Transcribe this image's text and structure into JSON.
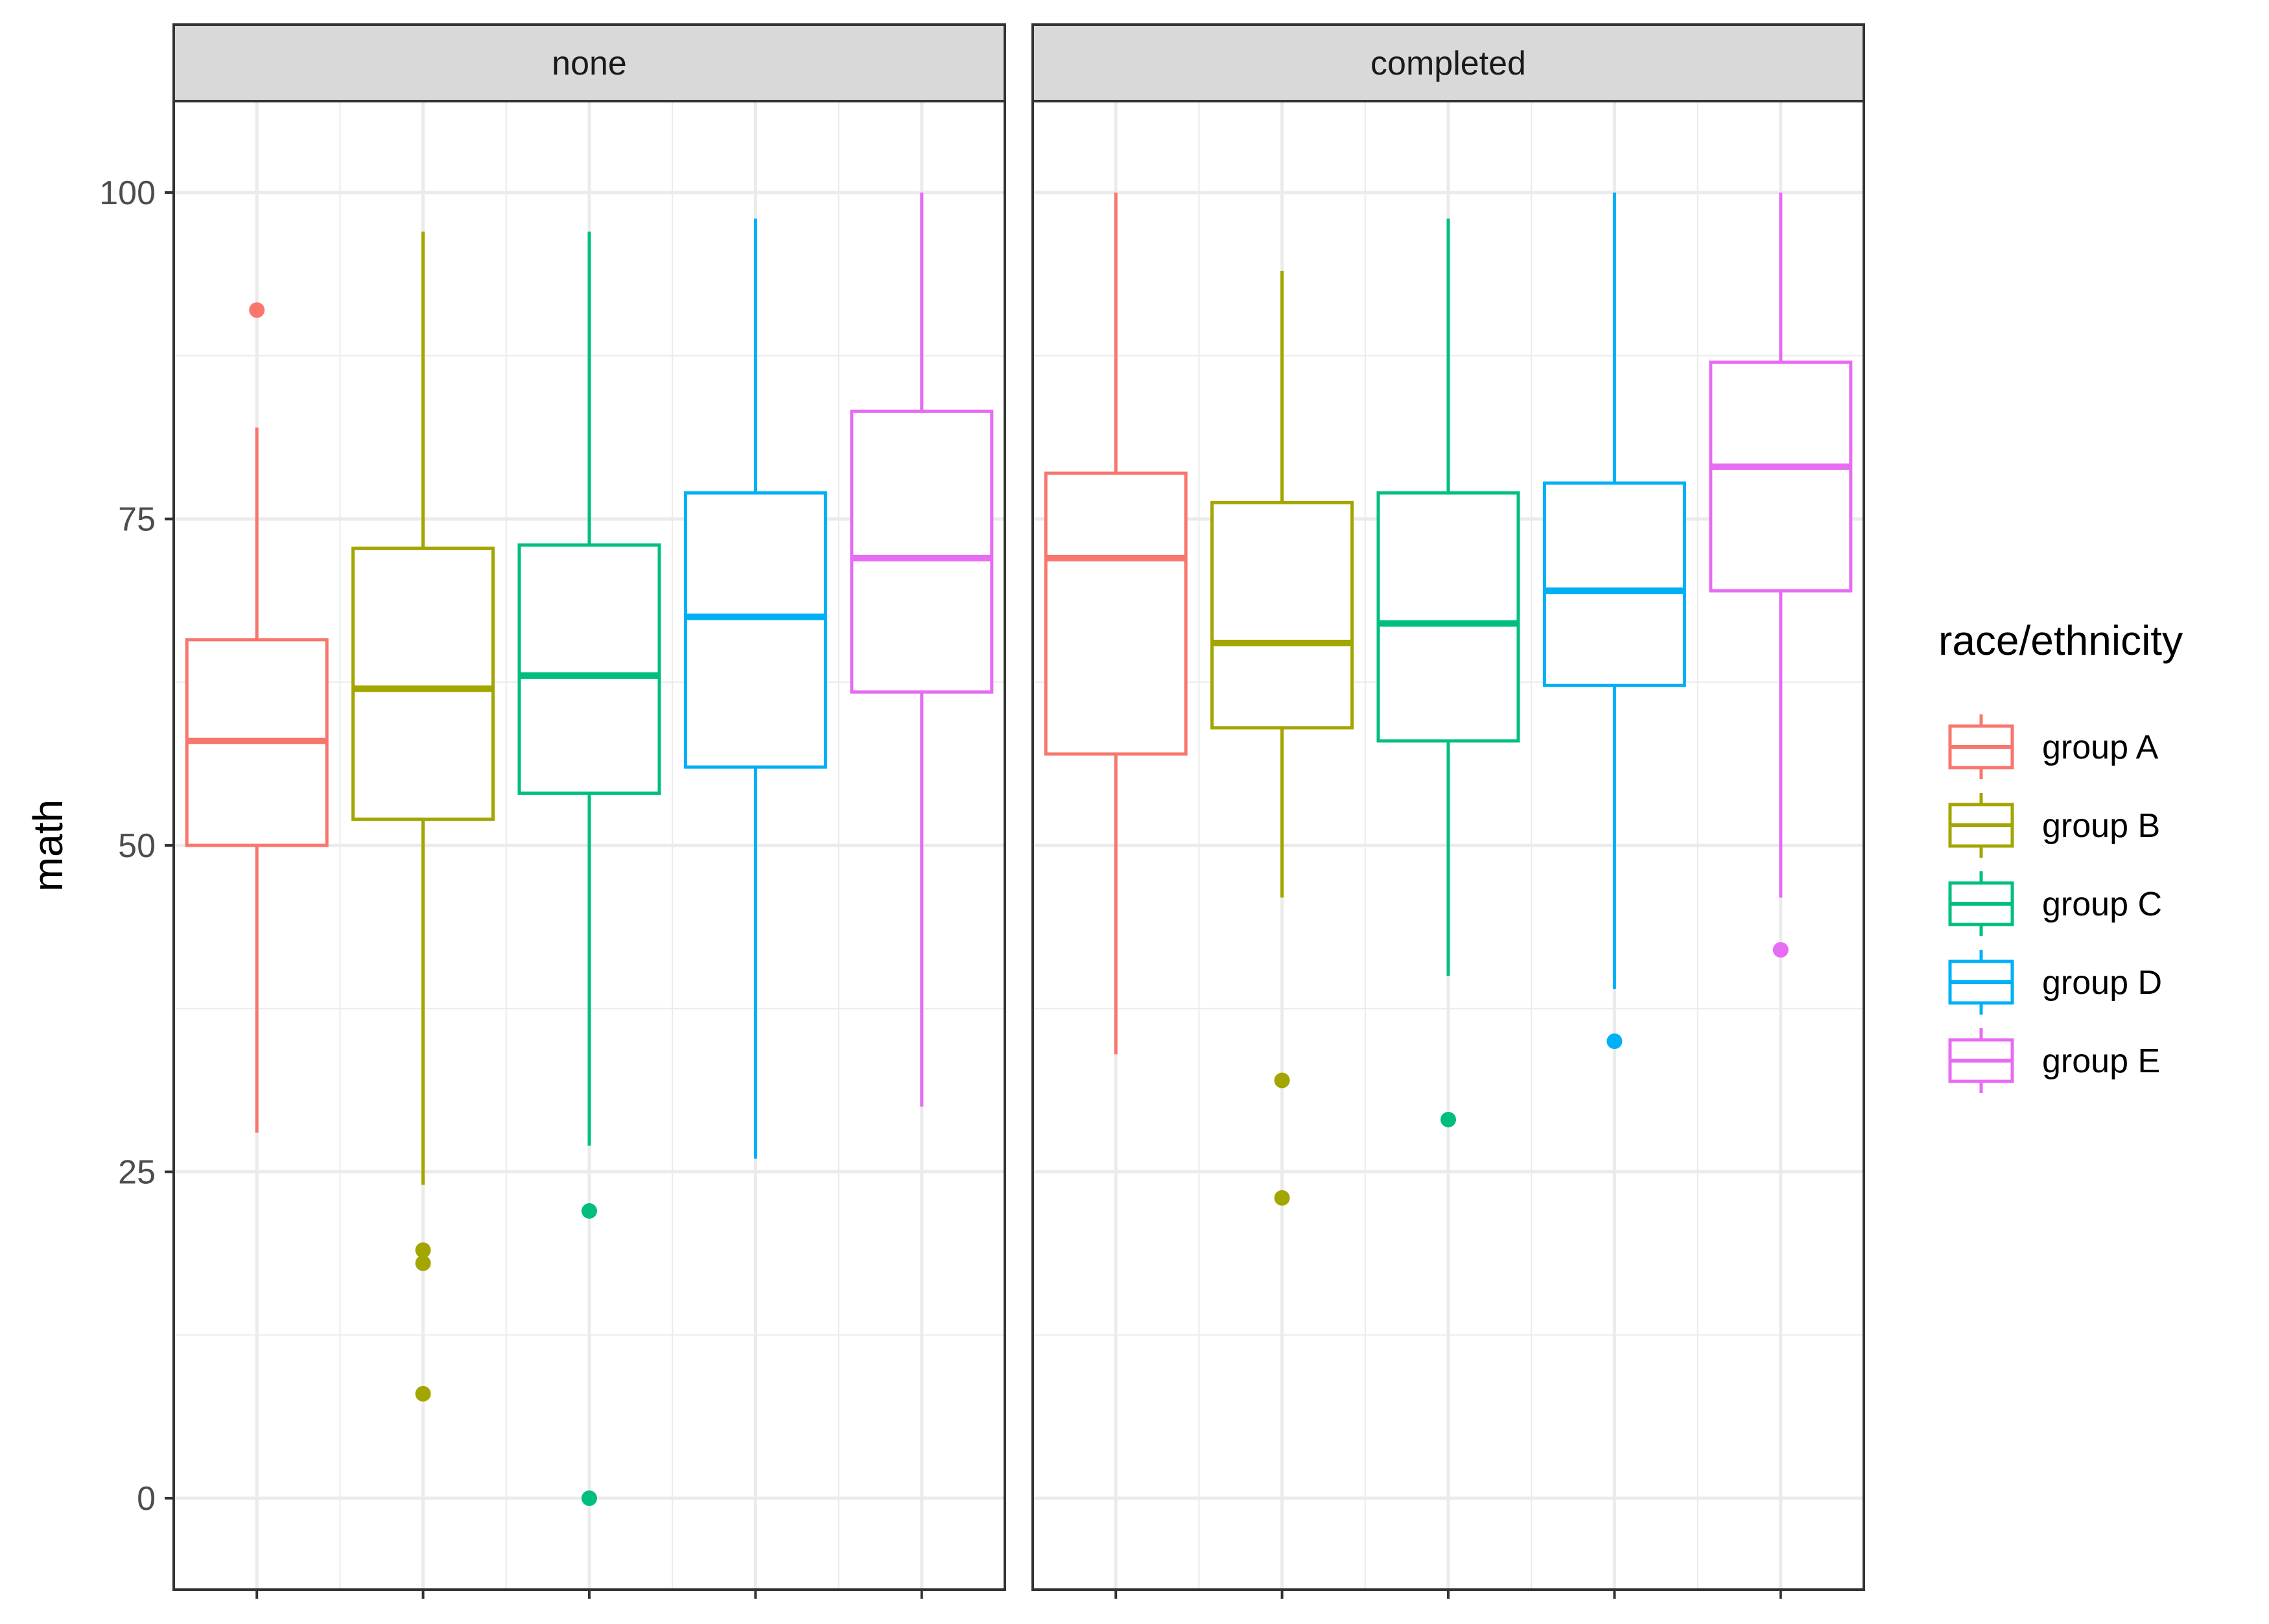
{
  "chart_data": {
    "type": "box",
    "ylabel": "math",
    "xlabel": "",
    "ylim": [
      -7,
      107
    ],
    "yticks": [
      0,
      25,
      50,
      75,
      100
    ],
    "legend": {
      "title": "race/ethnicity",
      "position": "right"
    },
    "grid": true,
    "colors": {
      "group A": "#F8766D",
      "group B": "#A3A500",
      "group C": "#00BF7D",
      "group D": "#00B0F6",
      "group E": "#E76BF3"
    },
    "groups": [
      "group A",
      "group B",
      "group C",
      "group D",
      "group E"
    ],
    "facets": [
      {
        "label": "none",
        "boxes": [
          {
            "group": "group A",
            "whisker_low": 28,
            "q1": 50,
            "median": 58,
            "q3": 65.75,
            "whisker_high": 82,
            "outliers": [
              91
            ]
          },
          {
            "group": "group B",
            "whisker_low": 24,
            "q1": 52,
            "median": 62,
            "q3": 72.75,
            "whisker_high": 97,
            "outliers": [
              19,
              18,
              8
            ]
          },
          {
            "group": "group C",
            "whisker_low": 27,
            "q1": 54,
            "median": 63,
            "q3": 73,
            "whisker_high": 97,
            "outliers": [
              22,
              0
            ]
          },
          {
            "group": "group D",
            "whisker_low": 26,
            "q1": 56,
            "median": 67.5,
            "q3": 77,
            "whisker_high": 98,
            "outliers": []
          },
          {
            "group": "group E",
            "whisker_low": 30,
            "q1": 61.75,
            "median": 72,
            "q3": 83.25,
            "whisker_high": 100,
            "outliers": []
          }
        ]
      },
      {
        "label": "completed",
        "boxes": [
          {
            "group": "group A",
            "whisker_low": 34,
            "q1": 57,
            "median": 72,
            "q3": 78.5,
            "whisker_high": 100,
            "outliers": []
          },
          {
            "group": "group B",
            "whisker_low": 46,
            "q1": 59,
            "median": 65.5,
            "q3": 76.25,
            "whisker_high": 94,
            "outliers": [
              32,
              23
            ]
          },
          {
            "group": "group C",
            "whisker_low": 40,
            "q1": 58,
            "median": 67,
            "q3": 77,
            "whisker_high": 98,
            "outliers": [
              29
            ]
          },
          {
            "group": "group D",
            "whisker_low": 39,
            "q1": 62.25,
            "median": 69.5,
            "q3": 77.75,
            "whisker_high": 100,
            "outliers": [
              35
            ]
          },
          {
            "group": "group E",
            "whisker_low": 46,
            "q1": 69.5,
            "median": 79,
            "q3": 87,
            "whisker_high": 100,
            "outliers": [
              42
            ]
          }
        ]
      }
    ]
  }
}
